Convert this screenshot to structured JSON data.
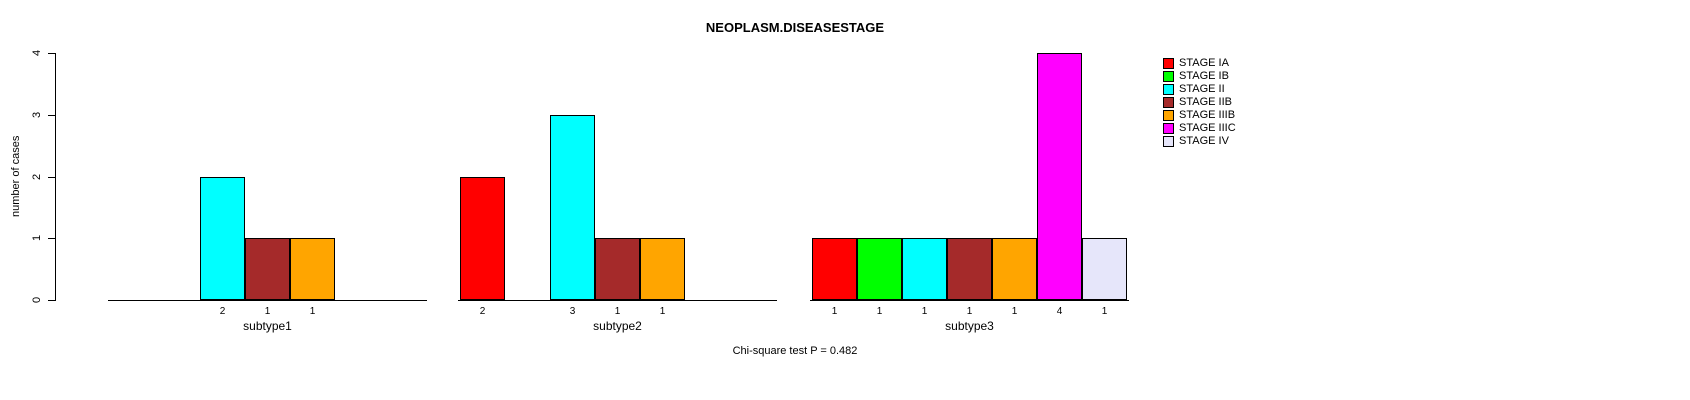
{
  "title": "NEOPLASM.DISEASESTAGE",
  "footer": "Chi-square test P = 0.482",
  "chart_data": {
    "type": "bar",
    "title": "NEOPLASM.DISEASESTAGE",
    "xlabel": "",
    "ylabel": "number of cases",
    "ylim": [
      0,
      4
    ],
    "yticks": [
      0,
      1,
      2,
      3,
      4
    ],
    "grid": false,
    "legend_position": "right",
    "categories": [
      "subtype1",
      "subtype2",
      "subtype3"
    ],
    "series": [
      {
        "name": "STAGE IA",
        "color": "#ff0000",
        "values": [
          0,
          2,
          1
        ]
      },
      {
        "name": "STAGE IB",
        "color": "#00ff00",
        "values": [
          0,
          0,
          1
        ]
      },
      {
        "name": "STAGE II",
        "color": "#00ffff",
        "values": [
          2,
          3,
          1
        ]
      },
      {
        "name": "STAGE IIB",
        "color": "#a52a2a",
        "values": [
          1,
          1,
          1
        ]
      },
      {
        "name": "STAGE IIIB",
        "color": "#ffa500",
        "values": [
          1,
          1,
          1
        ]
      },
      {
        "name": "STAGE IIIC",
        "color": "#ff00ff",
        "values": [
          0,
          0,
          4
        ]
      },
      {
        "name": "STAGE IV",
        "color": "#e6e6fa",
        "values": [
          0,
          0,
          1
        ]
      }
    ],
    "bar_value_labels": "shown under each nonzero bar",
    "annotation": "Chi-square test P = 0.482"
  }
}
